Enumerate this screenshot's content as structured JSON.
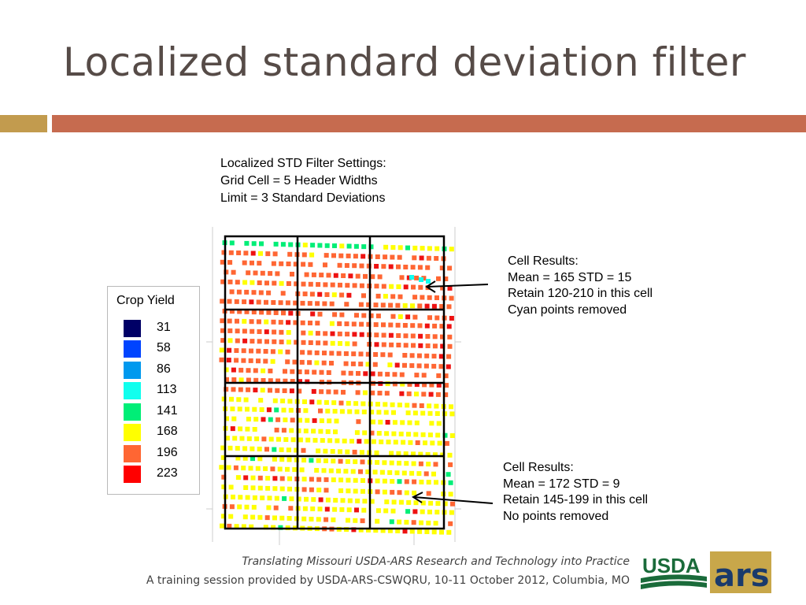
{
  "slide": {
    "title": "Localized standard deviation filter"
  },
  "settings": {
    "lines": [
      "Localized STD Filter Settings:",
      "Grid Cell = 5 Header Widths",
      "Limit = 3 Standard Deviations"
    ]
  },
  "legend": {
    "title": "Crop Yield",
    "items": [
      {
        "label": "31",
        "color": "#000066"
      },
      {
        "label": "58",
        "color": "#0044ff"
      },
      {
        "label": "86",
        "color": "#0099ee"
      },
      {
        "label": "113",
        "color": "#11ffee"
      },
      {
        "label": "141",
        "color": "#00ee77"
      },
      {
        "label": "168",
        "color": "#ffff00"
      },
      {
        "label": "196",
        "color": "#ff6633"
      },
      {
        "label": "223",
        "color": "#ff0000"
      }
    ]
  },
  "notes": {
    "top": {
      "lines": [
        "Cell Results:",
        "Mean  = 165   STD = 15",
        "Retain 120-210 in this cell",
        "Cyan points removed"
      ]
    },
    "bottom": {
      "lines": [
        "Cell Results:",
        "Mean  = 172   STD = 9",
        "Retain 145-199 in this cell",
        "No points removed"
      ]
    }
  },
  "footer": {
    "line1": "Translating Missouri USDA-ARS Research and Technology into Practice",
    "line2": "A training session provided by USDA-ARS-CSWQRU, 10-11 October 2012, Columbia, MO"
  },
  "logo": {
    "usda_text": "USDA",
    "ars_text": "ars",
    "colors": {
      "usda_bg": "#1a6b3a",
      "ars_bg": "#c8a74a",
      "ars_text": "#1a3a6b"
    }
  },
  "map_colors": {
    "green": "#00ee77",
    "yellow": "#ffff00",
    "orange": "#ff6633",
    "red": "#ee1111",
    "cyan": "#11ffee"
  }
}
